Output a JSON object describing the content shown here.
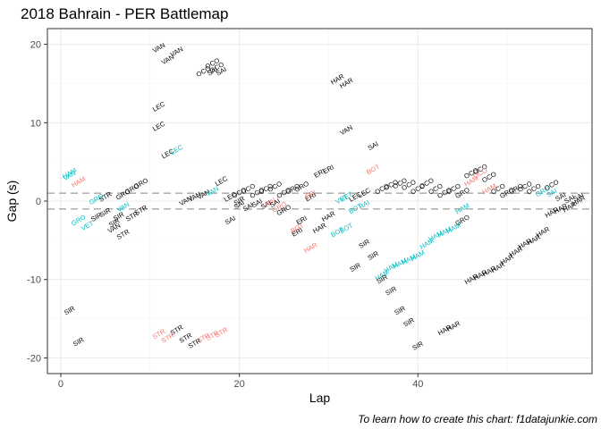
{
  "chart_data": {
    "type": "scatter",
    "title": "2018 Bahrain - PER Battlemap",
    "caption": "To learn how to create this chart: f1datajunkie.com",
    "xlabel": "Lap",
    "ylabel": "Gap (s)",
    "xlim": [
      -1.5,
      59.5
    ],
    "ylim": [
      -22,
      22
    ],
    "x_ticks": [
      0,
      20,
      40
    ],
    "y_ticks": [
      -20,
      -10,
      0,
      10,
      20
    ],
    "grid": true,
    "reference_lines": [
      1,
      -1
    ],
    "colors": {
      "black": "#000000",
      "red": "#f8766d",
      "teal": "#00bfc4",
      "ref_line": "#b3b3b3",
      "grid_major": "#ebebeb",
      "grid_minor": "#f5f5f5",
      "panel_border": "#333333"
    },
    "points": [
      {
        "x": 1,
        "y": -14,
        "label": "SIR",
        "color": "black"
      },
      {
        "x": 2,
        "y": -18,
        "label": "SIR",
        "color": "black"
      },
      {
        "x": 1,
        "y": 3.5,
        "label": "HAM",
        "color": "teal"
      },
      {
        "x": 2,
        "y": 2.4,
        "label": "HAM",
        "color": "red"
      },
      {
        "x": 1,
        "y": 3.2,
        "label": "VAN",
        "color": "teal"
      },
      {
        "x": 2,
        "y": -2.5,
        "label": "GRO",
        "color": "teal"
      },
      {
        "x": 3,
        "y": -3.2,
        "label": "VET",
        "color": "teal"
      },
      {
        "x": 4,
        "y": -2.1,
        "label": "SIR",
        "color": "black"
      },
      {
        "x": 4,
        "y": 0.2,
        "label": "GRO",
        "color": "teal"
      },
      {
        "x": 5,
        "y": 0.5,
        "label": "STR",
        "color": "black"
      },
      {
        "x": 5,
        "y": -1.5,
        "label": "SIR",
        "color": "black"
      },
      {
        "x": 6,
        "y": -2.8,
        "label": "SIR",
        "color": "black"
      },
      {
        "x": 6,
        "y": -3.5,
        "label": "VAN",
        "color": "black"
      },
      {
        "x": 6.5,
        "y": -2.0,
        "label": "SIR",
        "color": "black"
      },
      {
        "x": 7,
        "y": 0.8,
        "label": "GRO",
        "color": "black"
      },
      {
        "x": 7,
        "y": -0.8,
        "label": "VAN",
        "color": "teal"
      },
      {
        "x": 7,
        "y": -4.3,
        "label": "STR",
        "color": "black"
      },
      {
        "x": 8,
        "y": 1.5,
        "label": "GRO",
        "color": "black"
      },
      {
        "x": 8,
        "y": -2.0,
        "label": "STR",
        "color": "black"
      },
      {
        "x": 9,
        "y": 2.2,
        "label": "GRO",
        "color": "black"
      },
      {
        "x": 9,
        "y": -1.2,
        "label": "STR",
        "color": "black"
      },
      {
        "x": 11,
        "y": 19.5,
        "label": "VAN",
        "color": "black"
      },
      {
        "x": 11,
        "y": 12.0,
        "label": "LEC",
        "color": "black"
      },
      {
        "x": 11,
        "y": 9.5,
        "label": "LEC",
        "color": "black"
      },
      {
        "x": 11,
        "y": -17.0,
        "label": "STR",
        "color": "red"
      },
      {
        "x": 12,
        "y": 18.0,
        "label": "VAN",
        "color": "black"
      },
      {
        "x": 12,
        "y": 6.0,
        "label": "LEC",
        "color": "black"
      },
      {
        "x": 12,
        "y": -17.5,
        "label": "STR",
        "color": "red"
      },
      {
        "x": 13,
        "y": 6.5,
        "label": "LEC",
        "color": "teal"
      },
      {
        "x": 13,
        "y": 19.0,
        "label": "VAN",
        "color": "black"
      },
      {
        "x": 13,
        "y": -16.5,
        "label": "STR",
        "color": "black"
      },
      {
        "x": 14,
        "y": 0.0,
        "label": "VAN",
        "color": "black"
      },
      {
        "x": 14,
        "y": -17.5,
        "label": "STR",
        "color": "black"
      },
      {
        "x": 15,
        "y": 0.5,
        "label": "VAN",
        "color": "black"
      },
      {
        "x": 15,
        "y": -18.2,
        "label": "STR",
        "color": "black"
      },
      {
        "x": 16,
        "y": 0.8,
        "label": "VAN",
        "color": "black"
      },
      {
        "x": 16,
        "y": 16.5,
        "label": "OCO",
        "color": "black"
      },
      {
        "x": 16,
        "y": -17.5,
        "label": "STR",
        "color": "red"
      },
      {
        "x": 17,
        "y": 1.2,
        "label": "VAN",
        "color": "teal"
      },
      {
        "x": 17,
        "y": 16.5,
        "label": "SAI",
        "color": "black"
      },
      {
        "x": 17,
        "y": 17.5,
        "label": "OCO",
        "color": "black"
      },
      {
        "x": 17,
        "y": -17.2,
        "label": "STR",
        "color": "red"
      },
      {
        "x": 17.5,
        "y": 17.0,
        "label": "OCO",
        "color": "black"
      },
      {
        "x": 18,
        "y": 16.5,
        "label": "SAI",
        "color": "black"
      },
      {
        "x": 18,
        "y": 2.5,
        "label": "LEC",
        "color": "black"
      },
      {
        "x": 18,
        "y": -16.8,
        "label": "STR",
        "color": "red"
      },
      {
        "x": 19,
        "y": 0.5,
        "label": "LEC",
        "color": "black"
      },
      {
        "x": 19,
        "y": -2.5,
        "label": "SAI",
        "color": "black"
      },
      {
        "x": 20,
        "y": 0.0,
        "label": "SIR",
        "color": "black"
      },
      {
        "x": 20,
        "y": 1.0,
        "label": "OCO",
        "color": "black"
      },
      {
        "x": 20,
        "y": -0.5,
        "label": "SAI",
        "color": "black"
      },
      {
        "x": 21,
        "y": 1.5,
        "label": "OCO",
        "color": "black"
      },
      {
        "x": 21,
        "y": -0.8,
        "label": "SAI",
        "color": "black"
      },
      {
        "x": 22,
        "y": 1.0,
        "label": "OCO",
        "color": "black"
      },
      {
        "x": 22,
        "y": -0.3,
        "label": "SAI",
        "color": "black"
      },
      {
        "x": 23,
        "y": 1.5,
        "label": "OCO",
        "color": "black"
      },
      {
        "x": 23,
        "y": -0.5,
        "label": "SAI",
        "color": "black"
      },
      {
        "x": 23.5,
        "y": -0.2,
        "label": "RAI",
        "color": "red"
      },
      {
        "x": 24,
        "y": 1.8,
        "label": "OCO",
        "color": "black"
      },
      {
        "x": 24,
        "y": -0.3,
        "label": "SAI",
        "color": "black"
      },
      {
        "x": 24.5,
        "y": -0.8,
        "label": "GRO",
        "color": "red"
      },
      {
        "x": 25,
        "y": 1.0,
        "label": "OCO",
        "color": "black"
      },
      {
        "x": 25,
        "y": -1.2,
        "label": "GRO",
        "color": "black"
      },
      {
        "x": 26,
        "y": 1.5,
        "label": "GRO",
        "color": "black"
      },
      {
        "x": 26.5,
        "y": -4.0,
        "label": "ERI",
        "color": "black"
      },
      {
        "x": 26.5,
        "y": -3.5,
        "label": "BOT",
        "color": "red"
      },
      {
        "x": 27,
        "y": 1.8,
        "label": "GRO",
        "color": "black"
      },
      {
        "x": 27,
        "y": -2.5,
        "label": "ERI",
        "color": "black"
      },
      {
        "x": 28,
        "y": -6.0,
        "label": "HAR",
        "color": "red"
      },
      {
        "x": 28,
        "y": 0.5,
        "label": "ERI",
        "color": "black"
      },
      {
        "x": 28,
        "y": 0.8,
        "label": "ERI",
        "color": "red"
      },
      {
        "x": 29,
        "y": 3.5,
        "label": "ERI",
        "color": "black"
      },
      {
        "x": 29,
        "y": -3.5,
        "label": "HAR",
        "color": "black"
      },
      {
        "x": 30,
        "y": 4.0,
        "label": "ERI",
        "color": "black"
      },
      {
        "x": 30,
        "y": -2.0,
        "label": "HAR",
        "color": "black"
      },
      {
        "x": 31,
        "y": -4.0,
        "label": "BOT",
        "color": "teal"
      },
      {
        "x": 31,
        "y": 15.5,
        "label": "HAR",
        "color": "black"
      },
      {
        "x": 31.5,
        "y": 0.2,
        "label": "VET",
        "color": "teal"
      },
      {
        "x": 32,
        "y": 15.0,
        "label": "HAR",
        "color": "black"
      },
      {
        "x": 32,
        "y": 9.0,
        "label": "VAN",
        "color": "black"
      },
      {
        "x": 32,
        "y": -3.5,
        "label": "BOT",
        "color": "teal"
      },
      {
        "x": 32,
        "y": 0.5,
        "label": "VET",
        "color": "teal"
      },
      {
        "x": 33,
        "y": -1.0,
        "label": "BOT",
        "color": "teal"
      },
      {
        "x": 33,
        "y": 0.5,
        "label": "LEC",
        "color": "black"
      },
      {
        "x": 34,
        "y": 1.0,
        "label": "LEC",
        "color": "black"
      },
      {
        "x": 34,
        "y": -0.5,
        "label": "RAI",
        "color": "teal"
      },
      {
        "x": 34,
        "y": -5.5,
        "label": "SIR",
        "color": "black"
      },
      {
        "x": 33,
        "y": -8.5,
        "label": "SIR",
        "color": "black"
      },
      {
        "x": 35,
        "y": 7.0,
        "label": "SAI",
        "color": "black"
      },
      {
        "x": 35,
        "y": 4.0,
        "label": "BOT",
        "color": "red"
      },
      {
        "x": 35,
        "y": -7.0,
        "label": "SIR",
        "color": "black"
      },
      {
        "x": 36,
        "y": -9.5,
        "label": "HAM",
        "color": "teal"
      },
      {
        "x": 36,
        "y": 1.5,
        "label": "OCO",
        "color": "black"
      },
      {
        "x": 36,
        "y": -10.0,
        "label": "SIR",
        "color": "black"
      },
      {
        "x": 37,
        "y": -8.5,
        "label": "HAM",
        "color": "teal"
      },
      {
        "x": 37,
        "y": 2.0,
        "label": "OCO",
        "color": "black"
      },
      {
        "x": 37,
        "y": -11.5,
        "label": "SIR",
        "color": "black"
      },
      {
        "x": 38,
        "y": -8.0,
        "label": "HAM",
        "color": "teal"
      },
      {
        "x": 38,
        "y": 2.2,
        "label": "OCO",
        "color": "black"
      },
      {
        "x": 38,
        "y": -14.0,
        "label": "SIR",
        "color": "black"
      },
      {
        "x": 39,
        "y": -7.5,
        "label": "HAM",
        "color": "teal"
      },
      {
        "x": 39,
        "y": 2.0,
        "label": "OCO",
        "color": "black"
      },
      {
        "x": 39,
        "y": -15.5,
        "label": "SIR",
        "color": "black"
      },
      {
        "x": 40,
        "y": -7.0,
        "label": "HAM",
        "color": "teal"
      },
      {
        "x": 40,
        "y": 1.5,
        "label": "OCO",
        "color": "black"
      },
      {
        "x": 40,
        "y": -18.5,
        "label": "SIR",
        "color": "black"
      },
      {
        "x": 41,
        "y": -5.5,
        "label": "HAM",
        "color": "teal"
      },
      {
        "x": 41,
        "y": 2.2,
        "label": "OCO",
        "color": "black"
      },
      {
        "x": 42,
        "y": -4.5,
        "label": "HAM",
        "color": "teal"
      },
      {
        "x": 42,
        "y": 1.5,
        "label": "OCO",
        "color": "black"
      },
      {
        "x": 43,
        "y": -4.0,
        "label": "HAM",
        "color": "teal"
      },
      {
        "x": 43,
        "y": 1.0,
        "label": "OCO",
        "color": "black"
      },
      {
        "x": 43,
        "y": -16.5,
        "label": "HAR",
        "color": "black"
      },
      {
        "x": 44,
        "y": -3.5,
        "label": "HAM",
        "color": "teal"
      },
      {
        "x": 44,
        "y": 1.5,
        "label": "OCO",
        "color": "black"
      },
      {
        "x": 44,
        "y": -16.0,
        "label": "HAR",
        "color": "black"
      },
      {
        "x": 45,
        "y": -1.0,
        "label": "HAM",
        "color": "teal"
      },
      {
        "x": 45,
        "y": 1.0,
        "label": "GRO",
        "color": "black"
      },
      {
        "x": 45,
        "y": -2.5,
        "label": "GRO",
        "color": "black"
      },
      {
        "x": 46,
        "y": 3.5,
        "label": "OCO",
        "color": "black"
      },
      {
        "x": 46,
        "y": 2.5,
        "label": "HAM",
        "color": "red"
      },
      {
        "x": 46,
        "y": -10.0,
        "label": "HAR",
        "color": "black"
      },
      {
        "x": 47,
        "y": 4.0,
        "label": "OCO",
        "color": "black"
      },
      {
        "x": 47,
        "y": 3.5,
        "label": "OCO",
        "color": "red"
      },
      {
        "x": 47,
        "y": -9.5,
        "label": "HAR",
        "color": "black"
      },
      {
        "x": 48,
        "y": 3.0,
        "label": "OCO",
        "color": "black"
      },
      {
        "x": 48,
        "y": 1.5,
        "label": "HAM",
        "color": "red"
      },
      {
        "x": 48,
        "y": -9.0,
        "label": "HAR",
        "color": "black"
      },
      {
        "x": 49,
        "y": 1.5,
        "label": "OCO",
        "color": "black"
      },
      {
        "x": 49,
        "y": -8.5,
        "label": "HAR",
        "color": "black"
      },
      {
        "x": 50,
        "y": 1.0,
        "label": "GRO",
        "color": "black"
      },
      {
        "x": 50,
        "y": -7.5,
        "label": "HAR",
        "color": "black"
      },
      {
        "x": 51,
        "y": 1.5,
        "label": "GRO",
        "color": "black"
      },
      {
        "x": 51,
        "y": -6.5,
        "label": "HAR",
        "color": "black"
      },
      {
        "x": 52,
        "y": 1.8,
        "label": "OCO",
        "color": "black"
      },
      {
        "x": 52,
        "y": -5.5,
        "label": "HAR",
        "color": "black"
      },
      {
        "x": 53,
        "y": 1.5,
        "label": "OCO",
        "color": "black"
      },
      {
        "x": 53,
        "y": -5.0,
        "label": "HAR",
        "color": "black"
      },
      {
        "x": 54,
        "y": 1.2,
        "label": "GRO",
        "color": "teal"
      },
      {
        "x": 54,
        "y": -4.0,
        "label": "HAR",
        "color": "black"
      },
      {
        "x": 55,
        "y": 2.0,
        "label": "OCO",
        "color": "black"
      },
      {
        "x": 55,
        "y": 1.0,
        "label": "SAI",
        "color": "teal"
      },
      {
        "x": 55,
        "y": -1.5,
        "label": "HAR",
        "color": "black"
      },
      {
        "x": 56,
        "y": 0.5,
        "label": "SAI",
        "color": "black"
      },
      {
        "x": 56,
        "y": -1.0,
        "label": "HAR",
        "color": "black"
      },
      {
        "x": 57,
        "y": 0.2,
        "label": "SAI",
        "color": "black"
      },
      {
        "x": 57,
        "y": -0.8,
        "label": "HAR",
        "color": "black"
      },
      {
        "x": 58,
        "y": 0.5,
        "label": "SAI",
        "color": "black"
      },
      {
        "x": 58,
        "y": 0.0,
        "label": "HAR",
        "color": "black"
      }
    ]
  }
}
